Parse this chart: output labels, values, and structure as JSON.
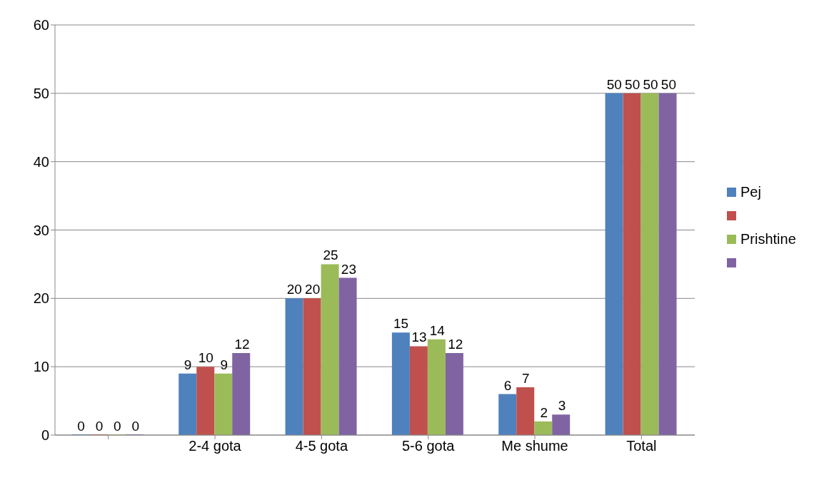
{
  "chart_data": {
    "type": "bar",
    "categories": [
      null,
      "2-4 gota",
      "4-5 gota",
      "5-6 gota",
      "Me shume",
      "Total"
    ],
    "series": [
      {
        "name": "Pej",
        "color": "#4f81bd",
        "values": [
          0,
          9,
          20,
          15,
          6,
          50
        ]
      },
      {
        "color": "#c0504d",
        "values": [
          0,
          10,
          20,
          13,
          7,
          50
        ]
      },
      {
        "name": "Prishtine",
        "color": "#9bbb59",
        "values": [
          0,
          9,
          25,
          14,
          2,
          50
        ]
      },
      {
        "color": "#8064a2",
        "values": [
          0,
          12,
          23,
          12,
          3,
          50
        ]
      }
    ],
    "ylim": [
      0,
      60
    ],
    "yticks": [
      0,
      10,
      20,
      30,
      40,
      50,
      60
    ],
    "grid": "y",
    "legend": "right",
    "data_labels": true
  }
}
